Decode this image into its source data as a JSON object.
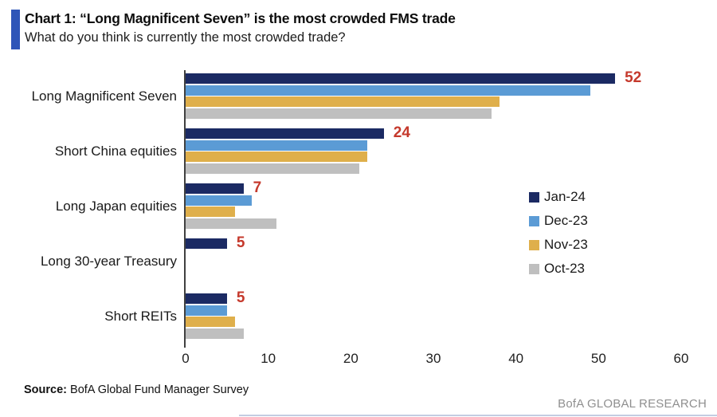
{
  "header": {
    "title": "Chart 1: “Long Magnificent Seven” is the most crowded FMS trade",
    "subtitle": "What do you think is currently the most crowded trade?"
  },
  "chart_data": {
    "type": "bar",
    "orientation": "horizontal",
    "title": "Chart 1: “Long Magnificent Seven” is the most crowded FMS trade",
    "subtitle": "What do you think is currently the most crowded trade?",
    "categories": [
      "Long Magnificent Seven",
      "Short China equities",
      "Long Japan equities",
      "Long 30-year Treasury",
      "Short REITs"
    ],
    "series": [
      {
        "name": "Jan-24",
        "color": "#1b2a63",
        "values": [
          52,
          24,
          7,
          5,
          5
        ]
      },
      {
        "name": "Dec-23",
        "color": "#5b9bd5",
        "values": [
          49,
          22,
          8,
          0,
          5
        ]
      },
      {
        "name": "Nov-23",
        "color": "#dfaf4b",
        "values": [
          38,
          22,
          6,
          0,
          6
        ]
      },
      {
        "name": "Oct-23",
        "color": "#bfbfbf",
        "values": [
          37,
          21,
          11,
          0,
          7
        ]
      }
    ],
    "value_labels": {
      "series": "Jan-24",
      "values": [
        "52",
        "24",
        "7",
        "5",
        "5"
      ],
      "color": "#c5392c"
    },
    "x_ticks": [
      "0",
      "10",
      "20",
      "30",
      "40",
      "50",
      "60"
    ],
    "xlim": [
      0,
      60
    ],
    "grid": false,
    "legend_position": "center-right"
  },
  "footer": {
    "source_label": "Source:",
    "source_text": " BofA Global Fund Manager Survey",
    "brand": "BofA GLOBAL RESEARCH"
  }
}
